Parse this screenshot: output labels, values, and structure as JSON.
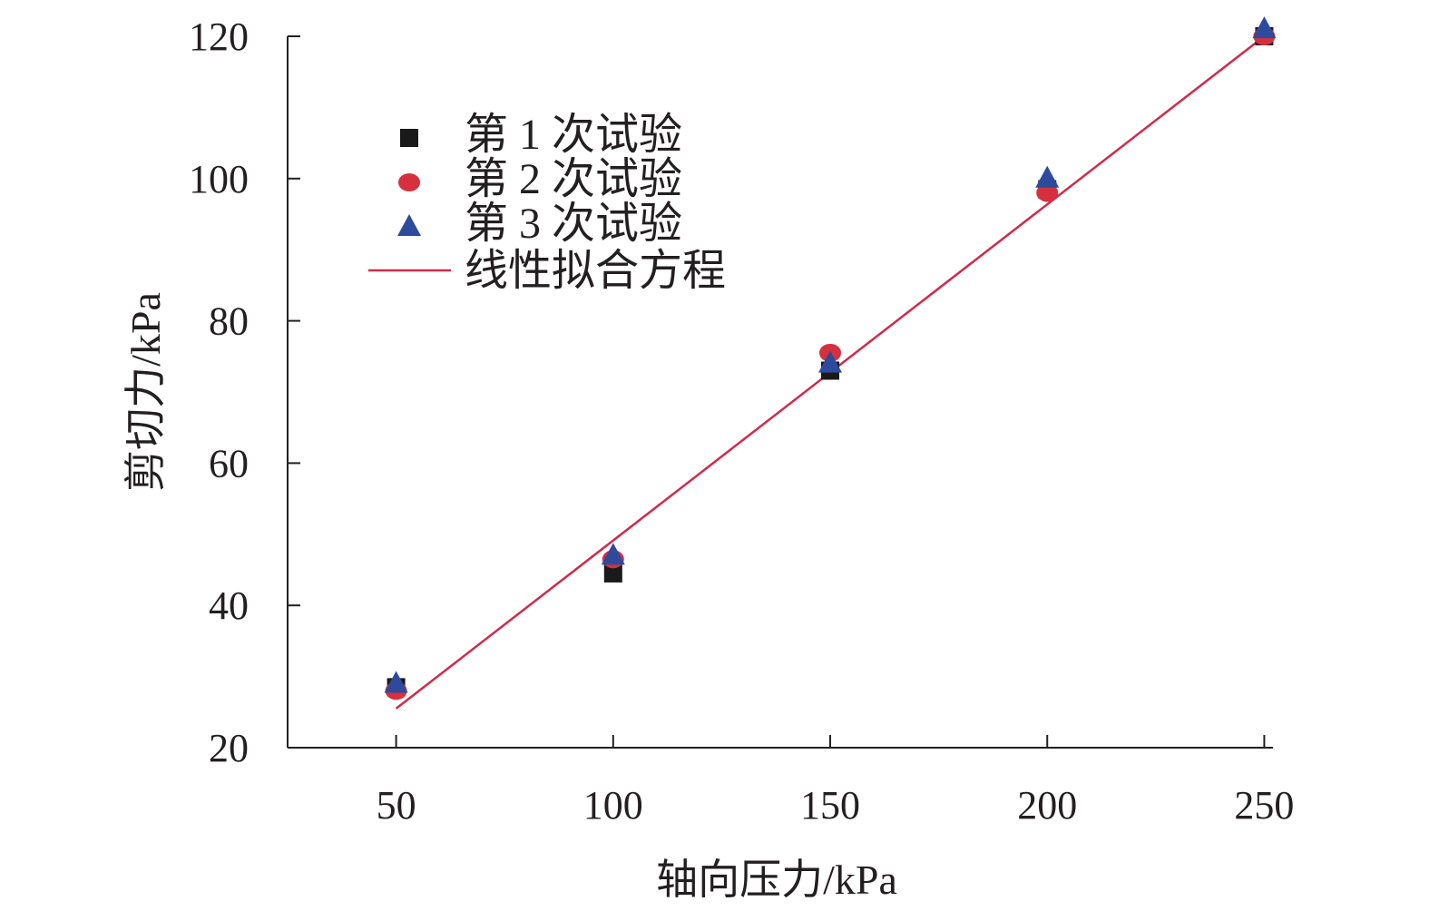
{
  "colors": {
    "axis": "#231f20",
    "series1": "#1a1a1a",
    "series2": "#d6303f",
    "series3": "#2e4a9c",
    "fit_line": "#cf2a4a"
  },
  "chart_data": {
    "type": "scatter",
    "xlabel": "轴向压力/kPa",
    "ylabel": "剪切力/kPa",
    "xlim": [
      25,
      252
    ],
    "ylim": [
      20,
      120
    ],
    "x_ticks": [
      50,
      100,
      150,
      200,
      250
    ],
    "y_ticks": [
      20,
      40,
      60,
      80,
      100,
      120
    ],
    "grid": false,
    "legend_position": "top-left",
    "series": [
      {
        "name": "第 1 次试验",
        "marker": "square",
        "x": [
          50,
          100,
          150,
          200,
          250
        ],
        "y": [
          28.5,
          44.5,
          73,
          98.5,
          120
        ]
      },
      {
        "name": "第 2 次试验",
        "marker": "circle",
        "x": [
          50,
          100,
          150,
          200,
          250
        ],
        "y": [
          28,
          46.5,
          75.5,
          98,
          120
        ]
      },
      {
        "name": "第 3 次试验",
        "marker": "triangle",
        "x": [
          50,
          100,
          150,
          200,
          250
        ],
        "y": [
          29,
          47,
          74,
          100,
          121
        ]
      }
    ],
    "fit_line": {
      "name": "线性拟合方程",
      "x": [
        50,
        250
      ],
      "y": [
        25.5,
        120
      ]
    }
  }
}
